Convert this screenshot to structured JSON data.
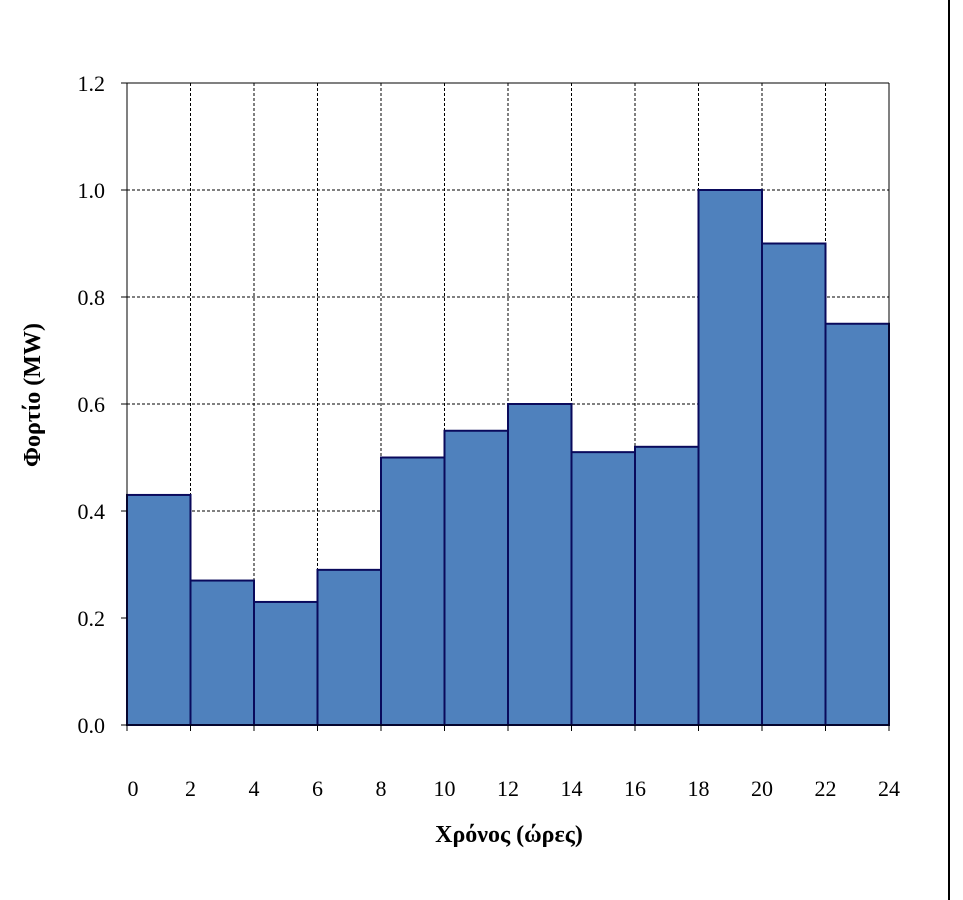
{
  "chart_data": {
    "type": "bar",
    "xlabel": "Χρόνος (ώρες)",
    "ylabel": "Φορτίο (MW)",
    "x_ticks": [
      "0",
      "2",
      "4",
      "6",
      "8",
      "10",
      "12",
      "14",
      "16",
      "18",
      "20",
      "22",
      "24"
    ],
    "y_ticks": [
      "0.0",
      "0.2",
      "0.4",
      "0.6",
      "0.8",
      "1.0",
      "1.2"
    ],
    "ylim": [
      0,
      1.2
    ],
    "xlim": [
      0,
      24
    ],
    "grid": true,
    "bars": [
      {
        "start": 0,
        "end": 2,
        "value": 0.43
      },
      {
        "start": 2,
        "end": 4,
        "value": 0.27
      },
      {
        "start": 4,
        "end": 6,
        "value": 0.23
      },
      {
        "start": 6,
        "end": 8,
        "value": 0.29
      },
      {
        "start": 8,
        "end": 10,
        "value": 0.5
      },
      {
        "start": 10,
        "end": 12,
        "value": 0.55
      },
      {
        "start": 12,
        "end": 14,
        "value": 0.6
      },
      {
        "start": 14,
        "end": 16,
        "value": 0.51
      },
      {
        "start": 16,
        "end": 18,
        "value": 0.52
      },
      {
        "start": 18,
        "end": 20,
        "value": 1.0
      },
      {
        "start": 20,
        "end": 22,
        "value": 0.9
      },
      {
        "start": 22,
        "end": 24,
        "value": 0.75
      }
    ],
    "bar_color": "#4f81bd",
    "bar_edge_color": "#0a0a5c"
  }
}
